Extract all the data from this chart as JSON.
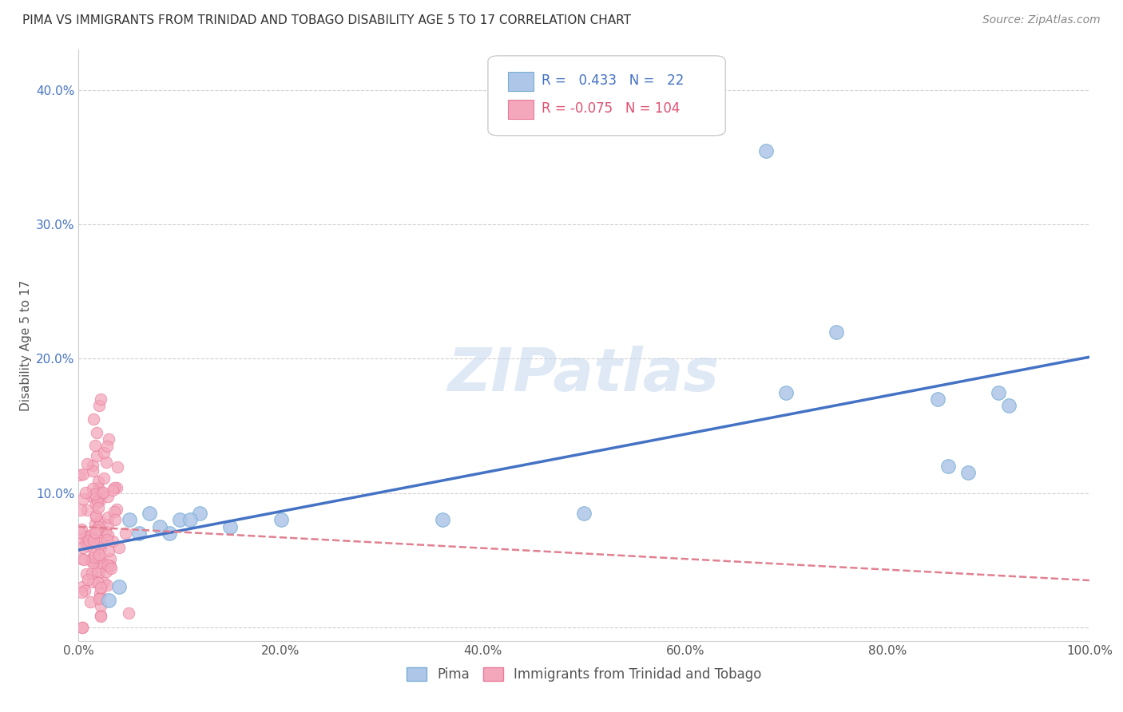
{
  "title": "PIMA VS IMMIGRANTS FROM TRINIDAD AND TOBAGO DISABILITY AGE 5 TO 17 CORRELATION CHART",
  "source": "Source: ZipAtlas.com",
  "ylabel": "Disability Age 5 to 17",
  "xlim": [
    0.0,
    1.0
  ],
  "ylim": [
    -0.01,
    0.43
  ],
  "xticks": [
    0.0,
    0.2,
    0.4,
    0.6,
    0.8,
    1.0
  ],
  "xticklabels": [
    "0.0%",
    "20.0%",
    "40.0%",
    "60.0%",
    "80.0%",
    "100.0%"
  ],
  "yticks": [
    0.0,
    0.1,
    0.2,
    0.3,
    0.4
  ],
  "yticklabels": [
    "",
    "10.0%",
    "20.0%",
    "30.0%",
    "40.0%"
  ],
  "blue_R": 0.433,
  "blue_N": 22,
  "pink_R": -0.075,
  "pink_N": 104,
  "blue_color": "#aec6e8",
  "pink_color": "#f4a7bb",
  "blue_edge": "#7aafd4",
  "pink_edge": "#e87a9a",
  "line_blue": "#4472c4",
  "line_pink": "#e08090",
  "legend_blue_label": "Pima",
  "legend_pink_label": "Immigrants from Trinidad and Tobago",
  "watermark": "ZIPatlas",
  "blue_x": [
    0.03,
    0.05,
    0.07,
    0.09,
    0.1,
    0.12,
    0.15,
    0.2,
    0.36,
    0.5,
    0.68,
    0.7,
    0.75,
    0.85,
    0.86,
    0.88,
    0.91,
    0.92,
    0.04,
    0.06,
    0.08,
    0.11
  ],
  "blue_y": [
    0.02,
    0.08,
    0.085,
    0.07,
    0.08,
    0.085,
    0.075,
    0.08,
    0.08,
    0.085,
    0.355,
    0.175,
    0.22,
    0.17,
    0.12,
    0.115,
    0.175,
    0.165,
    0.03,
    0.07,
    0.075,
    0.08
  ],
  "background_color": "#ffffff",
  "grid_color": "#d0d0d0",
  "title_fontsize": 11,
  "axis_label_fontsize": 11,
  "tick_fontsize": 11,
  "legend_fontsize": 12,
  "source_fontsize": 10
}
